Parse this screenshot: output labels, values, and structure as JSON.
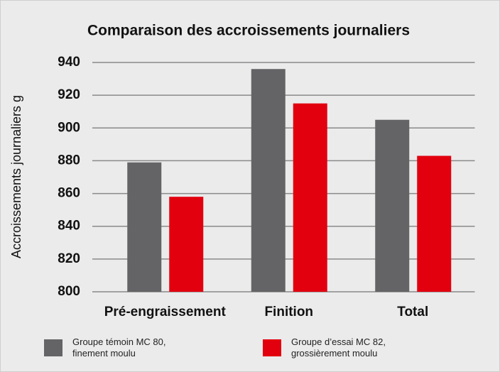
{
  "chart_data": {
    "type": "bar",
    "title": "Comparaison des accroissements journaliers",
    "ylabel": "Accroissements journaliers g",
    "categories": [
      "Pré-engraissement",
      "Finition",
      "Total"
    ],
    "series": [
      {
        "name": "Groupe témoin MC 80, finement moulu",
        "color": "#646466",
        "values": [
          879,
          936,
          905
        ]
      },
      {
        "name": "Groupe d’essai MC 82, grossièrement moulu",
        "color": "#e2000f",
        "values": [
          858,
          915,
          883
        ]
      }
    ],
    "ylim": [
      800,
      940
    ],
    "yticks": [
      800,
      820,
      840,
      860,
      880,
      900,
      920,
      940
    ],
    "grid": true
  }
}
